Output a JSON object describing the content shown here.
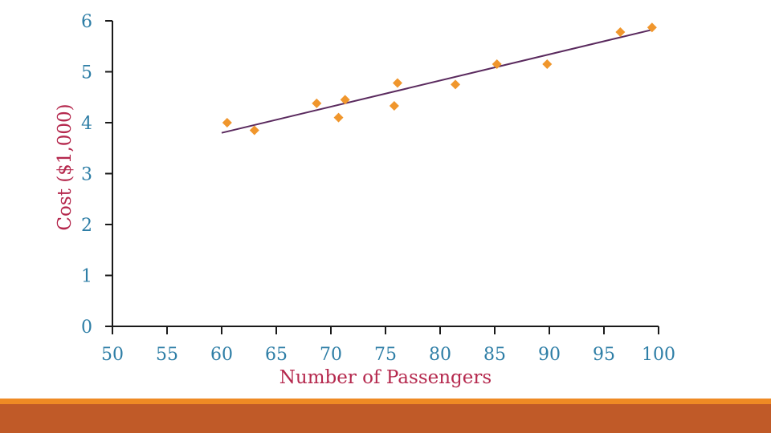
{
  "chart_data": {
    "type": "scatter",
    "title": "",
    "xlabel": "Number of Passengers",
    "ylabel": "Cost ($1,000)",
    "xlim": [
      50,
      100
    ],
    "ylim": [
      0,
      6
    ],
    "x_ticks": [
      "50",
      "55",
      "60",
      "65",
      "70",
      "75",
      "80",
      "85",
      "90",
      "95",
      "100"
    ],
    "y_ticks": [
      "0",
      "1",
      "2",
      "3",
      "4",
      "5",
      "6"
    ],
    "grid": false,
    "legend": "none",
    "series": [
      {
        "type": "scatter",
        "marker": "diamond",
        "points": [
          {
            "x": 60.5,
            "y": 4.0
          },
          {
            "x": 63.0,
            "y": 3.85
          },
          {
            "x": 68.7,
            "y": 4.38
          },
          {
            "x": 70.7,
            "y": 4.1
          },
          {
            "x": 71.3,
            "y": 4.45
          },
          {
            "x": 75.8,
            "y": 4.33
          },
          {
            "x": 76.1,
            "y": 4.78
          },
          {
            "x": 81.4,
            "y": 4.75
          },
          {
            "x": 85.2,
            "y": 5.15
          },
          {
            "x": 89.8,
            "y": 5.15
          },
          {
            "x": 96.5,
            "y": 5.78
          },
          {
            "x": 99.4,
            "y": 5.87
          }
        ]
      },
      {
        "type": "line",
        "role": "regression-line",
        "points": [
          {
            "x": 60.0,
            "y": 3.8
          },
          {
            "x": 99.5,
            "y": 5.83
          }
        ]
      }
    ]
  },
  "colors": {
    "axis": "#1a1a1a",
    "tick_text": "#2e7ea6",
    "axis_title": "#b5294e",
    "marker": "#f0962c",
    "regression_line": "#5a2a5e",
    "footer_stripe": "#ef8a24",
    "footer_bar": "#c05a28"
  }
}
